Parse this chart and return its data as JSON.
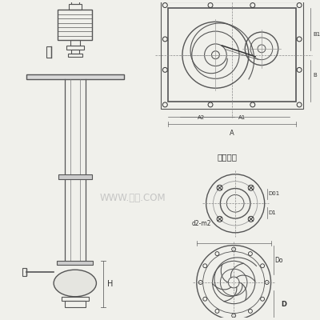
{
  "bg_color": "#f0f0eb",
  "line_color": "#555555",
  "dark_line": "#333333",
  "light_line": "#888888",
  "watermark_color": "#bbbbbb",
  "watermark_text": "WWW.泵阀.COM",
  "label_outlet": "出口法兰",
  "label_H": "H",
  "label_A": "A",
  "label_A1": "A1",
  "label_A2": "A2",
  "label_D": "D",
  "label_Do": "Do",
  "label_D1": "D1",
  "label_D01": "D01",
  "label_d2m2": "d2-m2"
}
